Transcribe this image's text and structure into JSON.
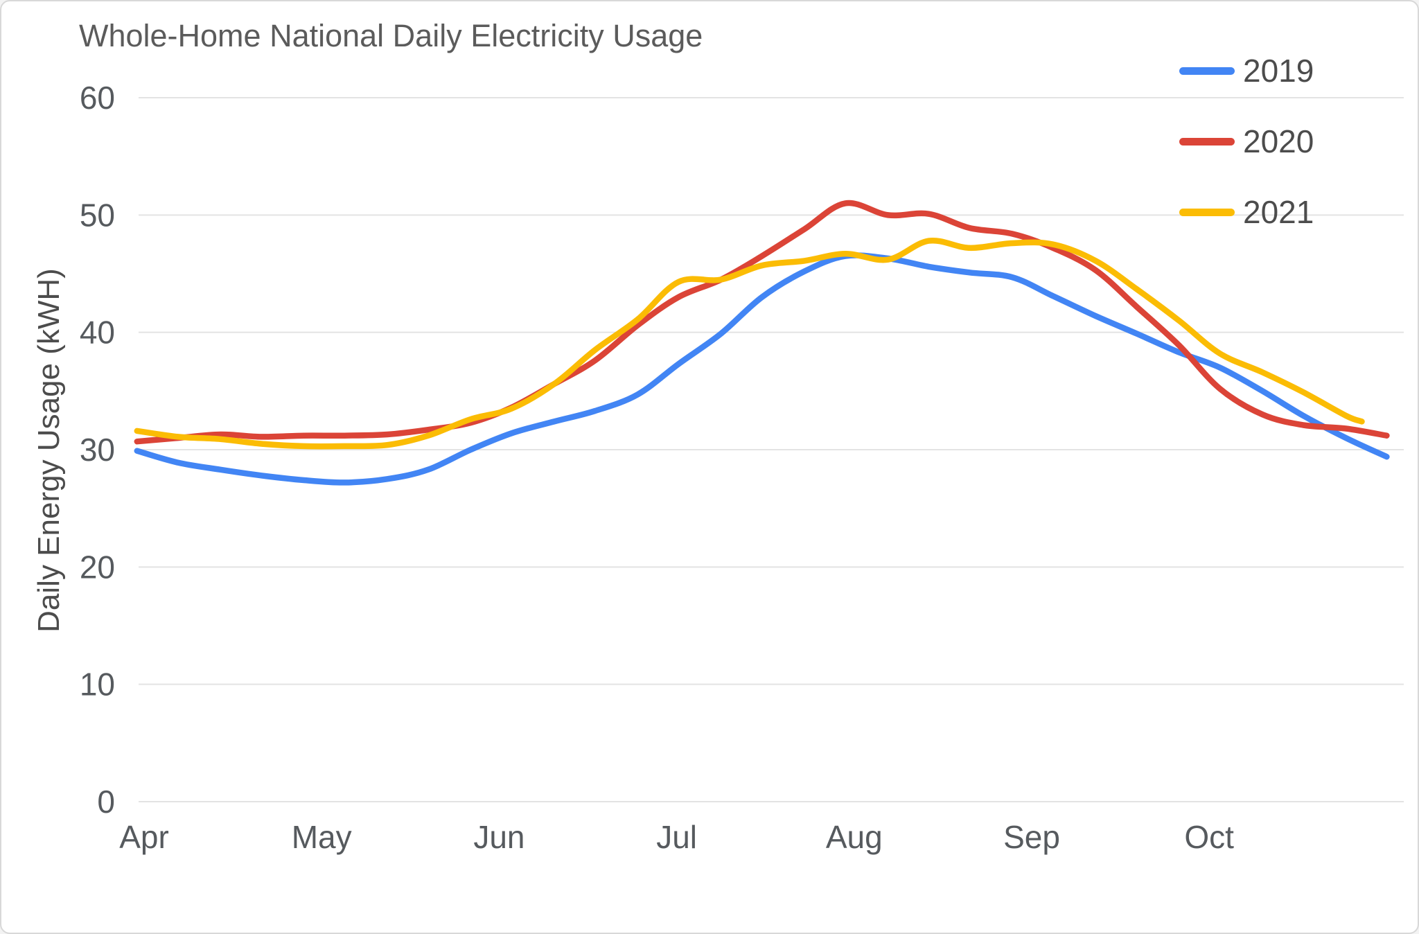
{
  "chart_data": {
    "type": "line",
    "title": "Whole-Home National Daily Electricity Usage",
    "xlabel": "",
    "ylabel": "Daily Energy Usage (kWH)",
    "ylim": [
      0,
      60
    ],
    "yticks": [
      0,
      10,
      20,
      30,
      40,
      50,
      60
    ],
    "x_categories": [
      "Apr",
      "May",
      "Jun",
      "Jul",
      "Aug",
      "Sep",
      "Oct"
    ],
    "x_unit": "month (Apr=0), data sampled ~weekly Apr 1 - late Oct",
    "grid": "horizontal-only",
    "legend_position": "top-right",
    "gridline_color": "#e3e3e3",
    "background_color": "#ffffff",
    "series": [
      {
        "name": "2019",
        "color": "#4285F4",
        "points": [
          [
            -0.04,
            29.9
          ],
          [
            0.19,
            28.9
          ],
          [
            0.43,
            28.3
          ],
          [
            0.66,
            27.8
          ],
          [
            0.9,
            27.4
          ],
          [
            1.13,
            27.2
          ],
          [
            1.37,
            27.5
          ],
          [
            1.6,
            28.3
          ],
          [
            1.84,
            30.0
          ],
          [
            2.07,
            31.4
          ],
          [
            2.31,
            32.4
          ],
          [
            2.54,
            33.3
          ],
          [
            2.78,
            34.7
          ],
          [
            3.01,
            37.3
          ],
          [
            3.25,
            39.9
          ],
          [
            3.48,
            43.0
          ],
          [
            3.72,
            45.2
          ],
          [
            3.95,
            46.5
          ],
          [
            4.19,
            46.3
          ],
          [
            4.42,
            45.6
          ],
          [
            4.65,
            45.1
          ],
          [
            4.89,
            44.7
          ],
          [
            5.12,
            43.1
          ],
          [
            5.36,
            41.4
          ],
          [
            5.59,
            39.9
          ],
          [
            5.83,
            38.3
          ],
          [
            6.06,
            37.0
          ],
          [
            6.3,
            35.0
          ],
          [
            6.53,
            32.9
          ],
          [
            6.77,
            31.0
          ],
          [
            7.0,
            29.4
          ]
        ]
      },
      {
        "name": "2020",
        "color": "#DB4437",
        "points": [
          [
            -0.04,
            30.7
          ],
          [
            0.19,
            31.0
          ],
          [
            0.43,
            31.3
          ],
          [
            0.66,
            31.1
          ],
          [
            0.9,
            31.2
          ],
          [
            1.13,
            31.2
          ],
          [
            1.37,
            31.3
          ],
          [
            1.6,
            31.7
          ],
          [
            1.84,
            32.3
          ],
          [
            2.07,
            33.6
          ],
          [
            2.31,
            35.6
          ],
          [
            2.54,
            37.6
          ],
          [
            2.78,
            40.6
          ],
          [
            3.01,
            43.0
          ],
          [
            3.25,
            44.5
          ],
          [
            3.48,
            46.5
          ],
          [
            3.72,
            48.8
          ],
          [
            3.95,
            51.0
          ],
          [
            4.19,
            50.0
          ],
          [
            4.42,
            50.1
          ],
          [
            4.65,
            48.9
          ],
          [
            4.89,
            48.4
          ],
          [
            5.12,
            47.2
          ],
          [
            5.36,
            45.3
          ],
          [
            5.59,
            42.2
          ],
          [
            5.83,
            38.9
          ],
          [
            6.06,
            35.2
          ],
          [
            6.3,
            33.0
          ],
          [
            6.53,
            32.1
          ],
          [
            6.77,
            31.8
          ],
          [
            7.0,
            31.2
          ]
        ]
      },
      {
        "name": "2021",
        "color": "#FBBC04",
        "points": [
          [
            -0.04,
            31.6
          ],
          [
            0.19,
            31.1
          ],
          [
            0.43,
            30.9
          ],
          [
            0.66,
            30.5
          ],
          [
            0.9,
            30.3
          ],
          [
            1.13,
            30.3
          ],
          [
            1.37,
            30.4
          ],
          [
            1.6,
            31.2
          ],
          [
            1.84,
            32.6
          ],
          [
            2.07,
            33.5
          ],
          [
            2.31,
            35.6
          ],
          [
            2.54,
            38.5
          ],
          [
            2.78,
            41.1
          ],
          [
            3.01,
            44.3
          ],
          [
            3.25,
            44.5
          ],
          [
            3.48,
            45.7
          ],
          [
            3.72,
            46.1
          ],
          [
            3.95,
            46.7
          ],
          [
            4.19,
            46.2
          ],
          [
            4.42,
            47.8
          ],
          [
            4.65,
            47.2
          ],
          [
            4.89,
            47.6
          ],
          [
            5.12,
            47.5
          ],
          [
            5.36,
            46.1
          ],
          [
            5.59,
            43.7
          ],
          [
            5.83,
            41.0
          ],
          [
            6.06,
            38.2
          ],
          [
            6.3,
            36.6
          ],
          [
            6.53,
            34.9
          ],
          [
            6.77,
            32.9
          ],
          [
            6.86,
            32.4
          ]
        ]
      }
    ]
  }
}
